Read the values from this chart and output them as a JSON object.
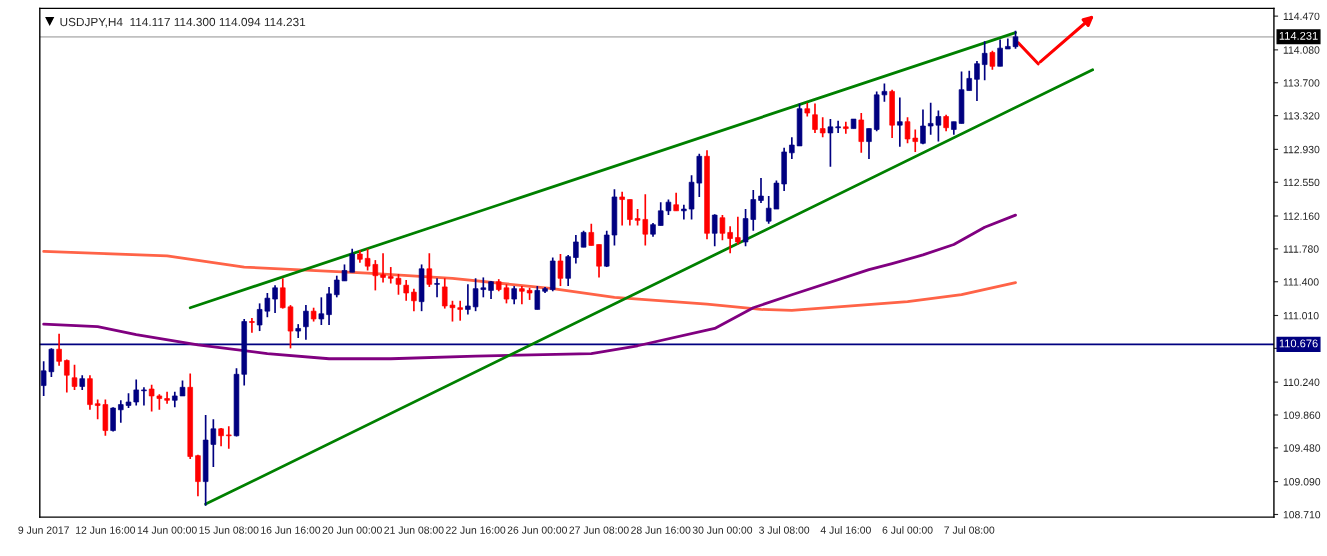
{
  "chart_data": {
    "type": "candlestick",
    "title": "USDJPY,H4  114.117 114.300 114.094 114.231",
    "categories": [
      "9 Jun 2017",
      null,
      null,
      null,
      null,
      null,
      null,
      null,
      "12 Jun 16:00",
      null,
      null,
      null,
      null,
      null,
      null,
      null,
      "14 Jun 00:00",
      null,
      null,
      null,
      null,
      null,
      null,
      null,
      "15 Jun 08:00",
      null,
      null,
      null,
      null,
      null,
      null,
      null,
      "16 Jun 16:00",
      null,
      null,
      null,
      null,
      null,
      null,
      null,
      "20 Jun 00:00",
      null,
      null,
      null,
      null,
      null,
      null,
      null,
      "21 Jun 08:00",
      null,
      null,
      null,
      null,
      null,
      null,
      null,
      "22 Jun 16:00",
      null,
      null,
      null,
      null,
      null,
      null,
      null,
      "26 Jun 00:00",
      null,
      null,
      null,
      null,
      null,
      null,
      null,
      "27 Jun 08:00",
      null,
      null,
      null,
      null,
      null,
      null,
      null,
      "28 Jun 16:00",
      null,
      null,
      null,
      null,
      null,
      null,
      null,
      "30 Jun 00:00",
      null,
      null,
      null,
      null,
      null,
      null,
      null,
      "3 Jul 08:00",
      null,
      null,
      null,
      null,
      null,
      null,
      null,
      "4 Jul 16:00",
      null,
      null,
      null,
      null,
      null,
      null,
      null,
      "6 Jul 00:00",
      null,
      null,
      null,
      null,
      null,
      null,
      null,
      "7 Jul 08:00",
      null,
      null,
      null,
      null,
      null,
      null,
      null,
      null,
      null,
      null,
      null,
      null,
      null,
      null,
      null,
      null,
      null,
      null,
      null,
      null,
      null,
      null,
      null,
      null,
      null,
      null,
      null,
      null,
      null,
      null,
      null,
      null,
      null,
      null,
      null,
      null,
      null,
      null,
      null
    ],
    "ohlc": [
      [
        110.2,
        110.48,
        110.08,
        110.37
      ],
      [
        110.36,
        110.63,
        110.3,
        110.62
      ],
      [
        110.62,
        110.8,
        110.43,
        110.48
      ],
      [
        110.49,
        110.5,
        110.12,
        110.32
      ],
      [
        110.29,
        110.44,
        110.15,
        110.19
      ],
      [
        110.19,
        110.32,
        110.15,
        110.28
      ],
      [
        110.28,
        110.32,
        109.92,
        109.98
      ],
      [
        109.99,
        110.04,
        109.81,
        109.97
      ],
      [
        109.98,
        110.04,
        109.62,
        109.68
      ],
      [
        109.68,
        109.95,
        109.67,
        109.94
      ],
      [
        109.92,
        110.03,
        109.77,
        109.98
      ],
      [
        109.97,
        110.11,
        109.94,
        110.01
      ],
      [
        110.01,
        110.27,
        109.97,
        110.15
      ],
      [
        110.14,
        110.18,
        109.97,
        110.15
      ],
      [
        110.16,
        110.21,
        109.9,
        110.08
      ],
      [
        110.08,
        110.1,
        109.92,
        110.05
      ],
      [
        110.05,
        110.13,
        109.99,
        110.03
      ],
      [
        110.03,
        110.13,
        109.95,
        110.08
      ],
      [
        110.08,
        110.26,
        110.08,
        110.18
      ],
      [
        110.18,
        110.34,
        109.35,
        109.38
      ],
      [
        109.39,
        109.4,
        108.92,
        109.09
      ],
      [
        109.09,
        109.86,
        108.81,
        109.57
      ],
      [
        109.52,
        109.81,
        109.26,
        109.7
      ],
      [
        109.7,
        109.71,
        109.5,
        109.62
      ],
      [
        109.63,
        109.73,
        109.47,
        109.62
      ],
      [
        109.62,
        110.4,
        109.61,
        110.33
      ],
      [
        110.33,
        110.97,
        110.2,
        110.94
      ],
      [
        110.94,
        110.98,
        110.81,
        110.93
      ],
      [
        110.9,
        111.15,
        110.83,
        111.08
      ],
      [
        111.06,
        111.27,
        110.99,
        111.21
      ],
      [
        111.2,
        111.36,
        111.04,
        111.33
      ],
      [
        111.33,
        111.44,
        111.09,
        111.1
      ],
      [
        111.11,
        111.13,
        110.63,
        110.83
      ],
      [
        110.83,
        110.91,
        110.75,
        110.86
      ],
      [
        110.88,
        111.13,
        110.73,
        111.06
      ],
      [
        111.06,
        111.1,
        110.94,
        110.97
      ],
      [
        110.97,
        111.22,
        110.9,
        111.03
      ],
      [
        111.02,
        111.34,
        110.9,
        111.26
      ],
      [
        111.25,
        111.47,
        111.22,
        111.42
      ],
      [
        111.41,
        111.6,
        111.41,
        111.53
      ],
      [
        111.51,
        111.78,
        111.51,
        111.72
      ],
      [
        111.72,
        111.76,
        111.62,
        111.66
      ],
      [
        111.67,
        111.78,
        111.53,
        111.58
      ],
      [
        111.6,
        111.65,
        111.3,
        111.47
      ],
      [
        111.48,
        111.73,
        111.39,
        111.45
      ],
      [
        111.46,
        111.57,
        111.38,
        111.44
      ],
      [
        111.44,
        111.49,
        111.25,
        111.37
      ],
      [
        111.36,
        111.42,
        111.18,
        111.27
      ],
      [
        111.28,
        111.32,
        111.06,
        111.18
      ],
      [
        111.17,
        111.6,
        111.06,
        111.55
      ],
      [
        111.55,
        111.73,
        111.34,
        111.37
      ],
      [
        111.37,
        111.44,
        111.22,
        111.38
      ],
      [
        111.34,
        111.44,
        111.09,
        111.12
      ],
      [
        111.13,
        111.18,
        110.94,
        111.1
      ],
      [
        111.1,
        111.18,
        110.95,
        111.08
      ],
      [
        111.08,
        111.37,
        111.02,
        111.12
      ],
      [
        111.11,
        111.44,
        111.06,
        111.32
      ],
      [
        111.31,
        111.45,
        111.22,
        111.33
      ],
      [
        111.3,
        111.41,
        111.2,
        111.4
      ],
      [
        111.4,
        111.43,
        111.29,
        111.31
      ],
      [
        111.33,
        111.37,
        111.15,
        111.2
      ],
      [
        111.2,
        111.35,
        111.14,
        111.32
      ],
      [
        111.32,
        111.35,
        111.14,
        111.29
      ],
      [
        111.3,
        111.33,
        111.19,
        111.27
      ],
      [
        111.08,
        111.35,
        111.08,
        111.3
      ],
      [
        111.29,
        111.34,
        111.27,
        111.32
      ],
      [
        111.31,
        111.68,
        111.29,
        111.64
      ],
      [
        111.64,
        111.72,
        111.35,
        111.44
      ],
      [
        111.44,
        111.71,
        111.35,
        111.69
      ],
      [
        111.68,
        111.94,
        111.61,
        111.86
      ],
      [
        111.8,
        111.99,
        111.8,
        111.97
      ],
      [
        111.97,
        112.07,
        111.82,
        111.82
      ],
      [
        111.83,
        111.83,
        111.45,
        111.58
      ],
      [
        111.58,
        111.99,
        111.57,
        111.94
      ],
      [
        111.94,
        112.47,
        111.82,
        112.38
      ],
      [
        112.38,
        112.44,
        112.05,
        112.35
      ],
      [
        112.35,
        112.35,
        112.05,
        112.12
      ],
      [
        112.13,
        112.24,
        112.05,
        112.11
      ],
      [
        112.12,
        112.41,
        111.82,
        111.95
      ],
      [
        111.95,
        112.08,
        111.92,
        112.06
      ],
      [
        112.05,
        112.32,
        112.05,
        112.22
      ],
      [
        112.22,
        112.35,
        112.17,
        112.32
      ],
      [
        112.29,
        112.43,
        112.22,
        112.22
      ],
      [
        112.22,
        112.29,
        112.12,
        112.24
      ],
      [
        112.24,
        112.63,
        112.12,
        112.55
      ],
      [
        112.54,
        112.88,
        112.38,
        112.85
      ],
      [
        112.85,
        112.92,
        111.89,
        111.96
      ],
      [
        111.96,
        112.18,
        111.81,
        112.17
      ],
      [
        112.14,
        112.17,
        111.88,
        111.96
      ],
      [
        111.97,
        112.04,
        111.73,
        111.9
      ],
      [
        111.91,
        112.15,
        111.83,
        111.86
      ],
      [
        111.86,
        112.24,
        111.81,
        112.13
      ],
      [
        112.12,
        112.46,
        111.99,
        112.35
      ],
      [
        112.34,
        112.6,
        112.31,
        112.39
      ],
      [
        112.1,
        112.39,
        112.07,
        112.25
      ],
      [
        112.24,
        112.57,
        112.24,
        112.54
      ],
      [
        112.53,
        112.95,
        112.45,
        112.9
      ],
      [
        112.89,
        113.07,
        112.82,
        112.98
      ],
      [
        112.97,
        113.46,
        112.97,
        113.4
      ],
      [
        113.4,
        113.47,
        113.31,
        113.35
      ],
      [
        113.33,
        113.46,
        113.12,
        113.16
      ],
      [
        113.17,
        113.3,
        113.07,
        113.12
      ],
      [
        113.12,
        113.28,
        112.73,
        113.19
      ],
      [
        113.18,
        113.26,
        113.12,
        113.19
      ],
      [
        113.19,
        113.25,
        113.11,
        113.17
      ],
      [
        113.17,
        113.28,
        113.17,
        113.28
      ],
      [
        113.27,
        113.35,
        112.89,
        113.02
      ],
      [
        113.02,
        113.17,
        112.82,
        113.17
      ],
      [
        113.16,
        113.6,
        113.14,
        113.56
      ],
      [
        113.56,
        113.69,
        113.48,
        113.6
      ],
      [
        113.6,
        113.62,
        113.06,
        113.21
      ],
      [
        113.21,
        113.53,
        112.96,
        113.25
      ],
      [
        113.25,
        113.3,
        113.0,
        113.05
      ],
      [
        113.06,
        113.16,
        112.9,
        113.02
      ],
      [
        113.0,
        113.39,
        112.99,
        113.2
      ],
      [
        113.2,
        113.47,
        113.1,
        113.23
      ],
      [
        113.21,
        113.38,
        113.02,
        113.31
      ],
      [
        113.31,
        113.33,
        113.14,
        113.18
      ],
      [
        113.16,
        113.25,
        113.1,
        113.25
      ],
      [
        113.23,
        113.83,
        113.23,
        113.62
      ],
      [
        113.61,
        113.84,
        113.61,
        113.75
      ],
      [
        113.74,
        113.95,
        113.49,
        113.92
      ],
      [
        113.91,
        114.18,
        113.73,
        114.04
      ],
      [
        114.05,
        114.07,
        113.85,
        113.89
      ],
      [
        113.89,
        114.2,
        113.89,
        114.1
      ],
      [
        114.09,
        114.21,
        114.09,
        114.12
      ],
      [
        114.117,
        114.3,
        114.094,
        114.231
      ],
      null,
      null,
      null,
      null,
      null,
      null,
      null,
      null,
      null,
      null,
      null,
      null,
      null,
      null,
      null,
      null,
      null,
      null,
      null,
      null,
      null,
      null,
      null,
      null,
      null,
      null,
      null,
      null,
      null,
      null,
      null,
      null,
      null
    ],
    "colors": [
      "#000080",
      "#000080",
      "#ff0000",
      "#ff0000",
      "#ff0000",
      "#000080",
      "#ff0000",
      "#ff0000",
      "#ff0000",
      "#000080",
      "#000080",
      "#000080",
      "#000080",
      "#000080",
      "#ff0000",
      "#ff0000",
      "#ff0000",
      "#000080",
      "#000080",
      "#ff0000",
      "#ff0000",
      "#000080",
      "#000080",
      "#ff0000",
      "#ff0000",
      "#000080",
      "#000080",
      "#ff0000",
      "#000080",
      "#000080",
      "#000080",
      "#ff0000",
      "#ff0000",
      "#000080",
      "#000080",
      "#ff0000",
      "#000080",
      "#000080",
      "#000080",
      "#000080",
      "#000080",
      "#ff0000",
      "#ff0000",
      "#ff0000",
      "#ff0000",
      "#ff0000",
      "#ff0000",
      "#ff0000",
      "#ff0000",
      "#000080",
      "#ff0000",
      "#000080",
      "#ff0000",
      "#ff0000",
      "#ff0000",
      "#000080",
      "#000080",
      "#000080",
      "#000080",
      "#ff0000",
      "#ff0000",
      "#000080",
      "#ff0000",
      "#ff0000",
      "#000080",
      "#000080",
      "#000080",
      "#ff0000",
      "#000080",
      "#000080",
      "#000080",
      "#ff0000",
      "#ff0000",
      "#000080",
      "#000080",
      "#ff0000",
      "#ff0000",
      "#ff0000",
      "#ff0000",
      "#000080",
      "#000080",
      "#000080",
      "#ff0000",
      "#000080",
      "#000080",
      "#000080",
      "#ff0000",
      "#000080",
      "#ff0000",
      "#ff0000",
      "#ff0000",
      "#000080",
      "#000080",
      "#000080",
      "#000080",
      "#000080",
      "#000080",
      "#000080",
      "#000080",
      "#ff0000",
      "#ff0000",
      "#ff0000",
      "#000080",
      "#000080",
      "#ff0000",
      "#000080",
      "#ff0000",
      "#000080",
      "#000080",
      "#000080",
      "#ff0000",
      "#000080",
      "#ff0000",
      "#ff0000",
      "#000080",
      "#000080",
      "#000080",
      "#ff0000",
      "#000080",
      "#000080",
      "#000080",
      "#000080",
      "#000080",
      "#ff0000",
      "#000080",
      "#000080",
      "#000080",
      null,
      null,
      null,
      null,
      null,
      null,
      null,
      null,
      null,
      null,
      null,
      null,
      null,
      null,
      null,
      null,
      null,
      null,
      null,
      null,
      null,
      null,
      null,
      null,
      null,
      null,
      null,
      null,
      null,
      null,
      null,
      null,
      null
    ],
    "series": [
      {
        "type": "line",
        "color": "#ff6347",
        "values": [
          111.75,
          null,
          null,
          null,
          null,
          null,
          null,
          null,
          null,
          null,
          null,
          null,
          null,
          null,
          null,
          null,
          111.7,
          null,
          null,
          null,
          null,
          null,
          null,
          null,
          null,
          null,
          111.57,
          null,
          null,
          null,
          null,
          null,
          null,
          null,
          null,
          null,
          null,
          null,
          null,
          null,
          null,
          null,
          111.5,
          null,
          null,
          null,
          null,
          null,
          null,
          null,
          null,
          null,
          null,
          111.44,
          null,
          null,
          null,
          null,
          null,
          null,
          null,
          null,
          null,
          null,
          null,
          null,
          111.32,
          null,
          null,
          null,
          null,
          null,
          null,
          null,
          111.22,
          null,
          null,
          null,
          null,
          null,
          null,
          null,
          null,
          null,
          null,
          null,
          111.14,
          null,
          null,
          null,
          null,
          null,
          null,
          111.08,
          null,
          null,
          null,
          111.07,
          null,
          null,
          null,
          null,
          null,
          null,
          null,
          null,
          null,
          null,
          null,
          null,
          null,
          null,
          111.17,
          null,
          null,
          null,
          null,
          null,
          null,
          111.25,
          null,
          null,
          null,
          null,
          null,
          null,
          111.39,
          null,
          null,
          null,
          null,
          null,
          null,
          null,
          null,
          null,
          null,
          null,
          null,
          null,
          null,
          null,
          null,
          null,
          null,
          null,
          null,
          null,
          null,
          null,
          null,
          null,
          null,
          null,
          null,
          null,
          null,
          null,
          null,
          null
        ]
      },
      {
        "type": "line",
        "color": "#800080",
        "values": [
          110.91,
          null,
          null,
          null,
          null,
          null,
          null,
          110.88,
          null,
          null,
          null,
          null,
          110.79,
          null,
          null,
          null,
          null,
          null,
          null,
          null,
          110.67,
          null,
          null,
          null,
          null,
          null,
          null,
          null,
          null,
          110.57,
          null,
          null,
          null,
          null,
          null,
          null,
          null,
          110.51,
          null,
          null,
          null,
          null,
          null,
          null,
          null,
          110.51,
          null,
          null,
          null,
          null,
          null,
          null,
          null,
          null,
          null,
          null,
          110.54,
          null,
          null,
          null,
          null,
          null,
          null,
          null,
          null,
          null,
          null,
          null,
          null,
          null,
          null,
          110.57,
          null,
          null,
          null,
          null,
          null,
          110.66,
          null,
          null,
          null,
          null,
          null,
          null,
          null,
          null,
          null,
          110.86,
          null,
          null,
          null,
          null,
          111.1,
          null,
          null,
          null,
          null,
          111.25,
          null,
          null,
          null,
          null,
          null,
          null,
          null,
          null,
          null,
          111.54,
          null,
          null,
          111.61,
          null,
          null,
          null,
          111.71,
          null,
          null,
          null,
          111.83,
          null,
          null,
          null,
          112.03,
          null,
          null,
          null,
          112.17,
          null,
          null,
          null,
          null,
          null,
          null,
          null,
          null,
          null,
          null,
          null,
          null,
          null,
          null,
          null,
          null,
          null,
          null,
          null,
          null,
          null,
          null,
          null,
          null,
          null,
          null,
          null,
          null,
          null,
          null,
          null,
          null,
          null
        ]
      },
      {
        "type": "line",
        "color": "#008000",
        "values": [
          null,
          null,
          null,
          null,
          null,
          null,
          null,
          null,
          null,
          null,
          null,
          null,
          null,
          null,
          null,
          null,
          null,
          null,
          null,
          111.1,
          null,
          null,
          null,
          null,
          null,
          null,
          null,
          null,
          null,
          null,
          null,
          null,
          null,
          null,
          null,
          null,
          null,
          null,
          null,
          null,
          null,
          null,
          null,
          null,
          null,
          null,
          null,
          null,
          null,
          null,
          null,
          null,
          null,
          null,
          null,
          null,
          null,
          null,
          null,
          null,
          null,
          null,
          null,
          null,
          null,
          null,
          null,
          null,
          null,
          null,
          null,
          null,
          null,
          null,
          null,
          null,
          null,
          null,
          null,
          null,
          null,
          null,
          null,
          null,
          null,
          null,
          null,
          null,
          null,
          null,
          null,
          null,
          null,
          null,
          null,
          null,
          null,
          null,
          null,
          null,
          null,
          null,
          null,
          null,
          null,
          null,
          null,
          null,
          null,
          null,
          null,
          null,
          null,
          null,
          null,
          null,
          null,
          null,
          null,
          null,
          null,
          null,
          null,
          null,
          null,
          null,
          114.28,
          null,
          null,
          null,
          null,
          null,
          null,
          null,
          null,
          null,
          null,
          null,
          null,
          null,
          null,
          null,
          null,
          null,
          null,
          null,
          null,
          null,
          null,
          null,
          null,
          null,
          null,
          null,
          null,
          null,
          null,
          null,
          null,
          null
        ]
      },
      {
        "type": "line",
        "color": "#008000",
        "values": [
          null,
          null,
          null,
          null,
          null,
          null,
          null,
          null,
          null,
          null,
          null,
          null,
          null,
          null,
          null,
          null,
          null,
          null,
          null,
          null,
          null,
          108.83,
          null,
          null,
          null,
          null,
          null,
          null,
          null,
          null,
          null,
          null,
          null,
          null,
          null,
          null,
          null,
          null,
          null,
          null,
          null,
          null,
          null,
          null,
          null,
          null,
          null,
          null,
          null,
          null,
          null,
          null,
          null,
          null,
          null,
          null,
          null,
          null,
          null,
          null,
          null,
          null,
          null,
          null,
          null,
          null,
          null,
          null,
          null,
          null,
          null,
          null,
          null,
          null,
          null,
          null,
          null,
          null,
          null,
          null,
          null,
          null,
          null,
          null,
          null,
          null,
          null,
          null,
          null,
          null,
          null,
          null,
          null,
          null,
          null,
          null,
          null,
          null,
          null,
          null,
          null,
          null,
          null,
          null,
          null,
          null,
          null,
          null,
          null,
          null,
          null,
          null,
          null,
          null,
          null,
          null,
          null,
          null,
          null,
          null,
          null,
          null,
          null,
          null,
          null,
          null,
          null,
          null,
          null,
          null,
          null,
          null,
          null,
          null,
          null,
          null,
          113.85,
          null,
          null,
          null,
          null,
          null,
          null,
          null,
          null,
          null,
          null,
          null,
          null,
          null,
          null,
          null,
          null,
          null,
          null,
          null,
          null,
          null,
          null,
          null
        ]
      }
    ],
    "ylim": [
      108.68,
      114.56
    ],
    "yticks": [
      {
        "value": 108.71,
        "label": "108.710"
      },
      {
        "value": 109.09,
        "label": "109.090"
      },
      {
        "value": 109.48,
        "label": "109.480"
      },
      {
        "value": 109.86,
        "label": "109.860"
      },
      {
        "value": 110.24,
        "label": "110.240"
      },
      {
        "value": 110.63,
        "label": null
      },
      {
        "value": 111.01,
        "label": "111.010"
      },
      {
        "value": 111.4,
        "label": "111.400"
      },
      {
        "value": 111.78,
        "label": "111.780"
      },
      {
        "value": 112.16,
        "label": "112.160"
      },
      {
        "value": 112.55,
        "label": "112.550"
      },
      {
        "value": 112.93,
        "label": "112.930"
      },
      {
        "value": 113.32,
        "label": "113.320"
      },
      {
        "value": 113.7,
        "label": "113.700"
      },
      {
        "value": 114.08,
        "label": "114.080"
      },
      {
        "value": 114.47,
        "label": "114.470"
      }
    ],
    "ref_lines": [
      {
        "axis": "y",
        "value": 110.676,
        "label": "110.676",
        "color": "#000080"
      },
      {
        "axis": "y",
        "value": 114.231,
        "label": "114.231",
        "color": "#c0c0c0"
      }
    ]
  }
}
